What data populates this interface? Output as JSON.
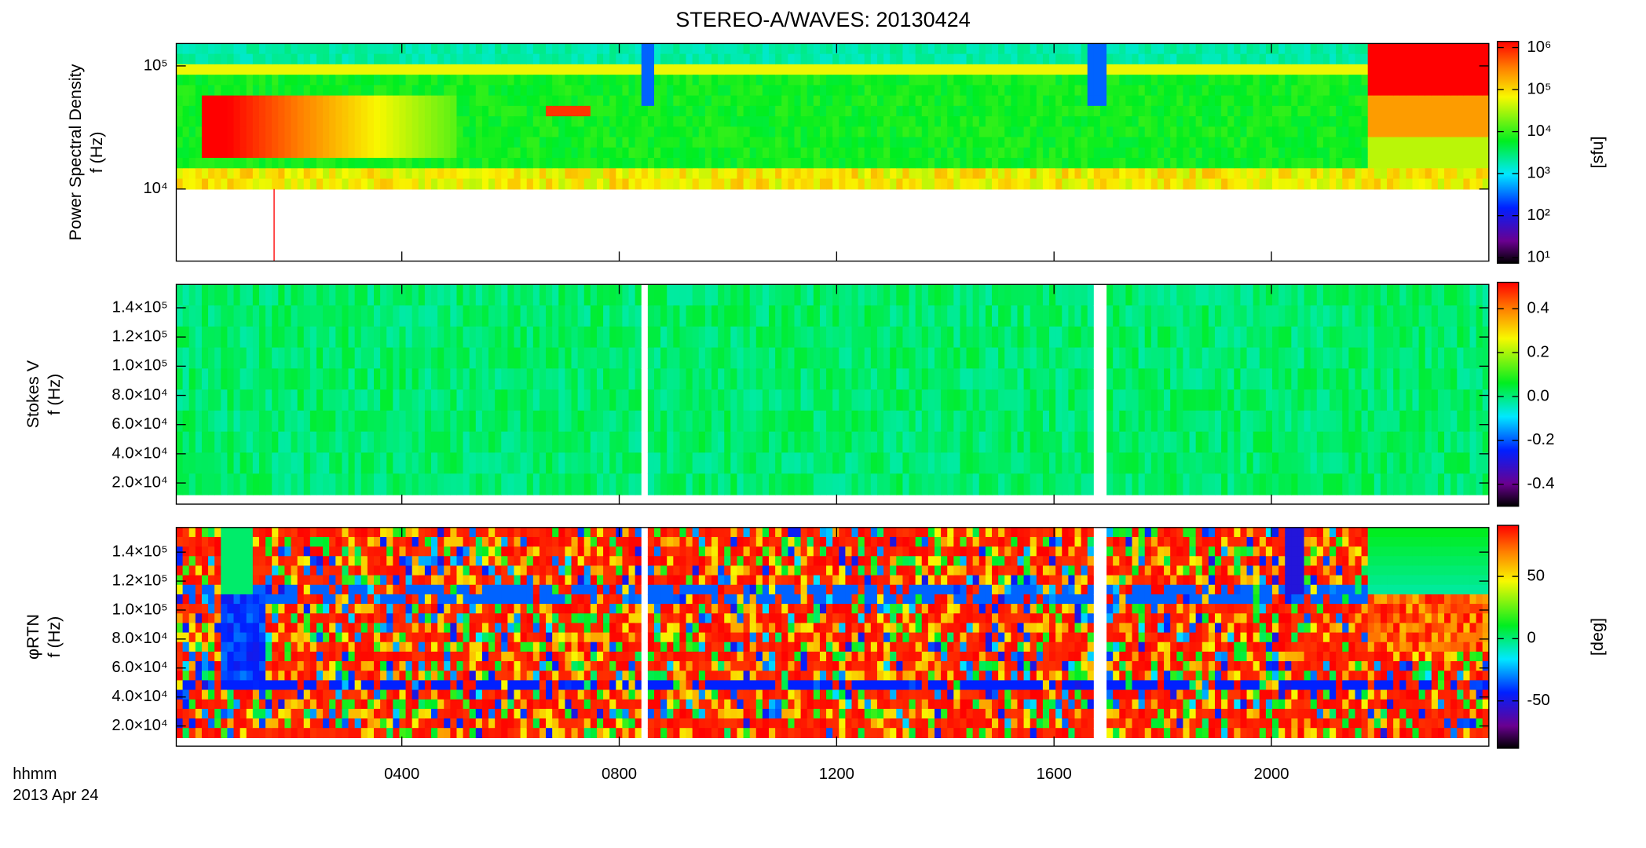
{
  "chart_data": [
    {
      "type": "heatmap",
      "title": "STEREO-A/WAVES: 20130424",
      "ylabel": [
        "Power Spectral Density",
        "f (Hz)"
      ],
      "log_y": true,
      "ylim": [
        2600,
        152000
      ],
      "yticks": [
        {
          "value": 10000,
          "label": "10⁴"
        },
        {
          "value": 100000,
          "label": "10⁵"
        }
      ],
      "colorbar": {
        "label": "[sfu]",
        "log": true,
        "lim": [
          7.4,
          1400000
        ],
        "ticks": [
          {
            "value": 10,
            "label": "10¹"
          },
          {
            "value": 100,
            "label": "10²"
          },
          {
            "value": 1000,
            "label": "10³"
          },
          {
            "value": 10000,
            "label": "10⁴"
          },
          {
            "value": 100000,
            "label": "10⁵"
          },
          {
            "value": 1000000,
            "label": "10⁶"
          }
        ]
      }
    },
    {
      "type": "heatmap",
      "ylabel": [
        "Stokes V",
        "f (Hz)"
      ],
      "log_y": false,
      "ylim": [
        5500,
        156000
      ],
      "yticks": [
        {
          "value": 20000,
          "label": "2.0×10⁴"
        },
        {
          "value": 40000,
          "label": "4.0×10⁴"
        },
        {
          "value": 60000,
          "label": "6.0×10⁴"
        },
        {
          "value": 80000,
          "label": "8.0×10⁴"
        },
        {
          "value": 100000,
          "label": "1.0×10⁵"
        },
        {
          "value": 120000,
          "label": "1.2×10⁵"
        },
        {
          "value": 140000,
          "label": "1.4×10⁵"
        }
      ],
      "colorbar": {
        "log": false,
        "lim": [
          -0.5,
          0.52
        ],
        "ticks": [
          {
            "value": -0.4,
            "label": "-0.4"
          },
          {
            "value": -0.2,
            "label": "-0.2"
          },
          {
            "value": 0,
            "label": "0.0"
          },
          {
            "value": 0.2,
            "label": "0.2"
          },
          {
            "value": 0.4,
            "label": "0.4"
          }
        ]
      }
    },
    {
      "type": "heatmap",
      "ylabel": [
        "φRTN",
        "f (Hz)"
      ],
      "log_y": false,
      "ylim": [
        6100,
        157000
      ],
      "yticks": [
        {
          "value": 20000,
          "label": "2.0×10⁴"
        },
        {
          "value": 40000,
          "label": "4.0×10⁴"
        },
        {
          "value": 60000,
          "label": "6.0×10⁴"
        },
        {
          "value": 80000,
          "label": "8.0×10⁴"
        },
        {
          "value": 100000,
          "label": "1.0×10⁵"
        },
        {
          "value": 120000,
          "label": "1.2×10⁵"
        },
        {
          "value": 140000,
          "label": "1.4×10⁵"
        }
      ],
      "colorbar": {
        "label": "[deg]",
        "log": false,
        "lim": [
          -88,
          91
        ],
        "ticks": [
          -50,
          0,
          50
        ]
      },
      "xlabel": [
        "hhmm",
        "2013 Apr 24"
      ]
    }
  ],
  "x_axis": {
    "xlim": [
      -0.15,
      24
    ],
    "xticks": [
      {
        "value": 4,
        "label": "0400"
      },
      {
        "value": 8,
        "label": "0800"
      },
      {
        "value": 12,
        "label": "1200"
      },
      {
        "value": 16,
        "label": "1600"
      },
      {
        "value": 20,
        "label": "2000"
      }
    ]
  }
}
